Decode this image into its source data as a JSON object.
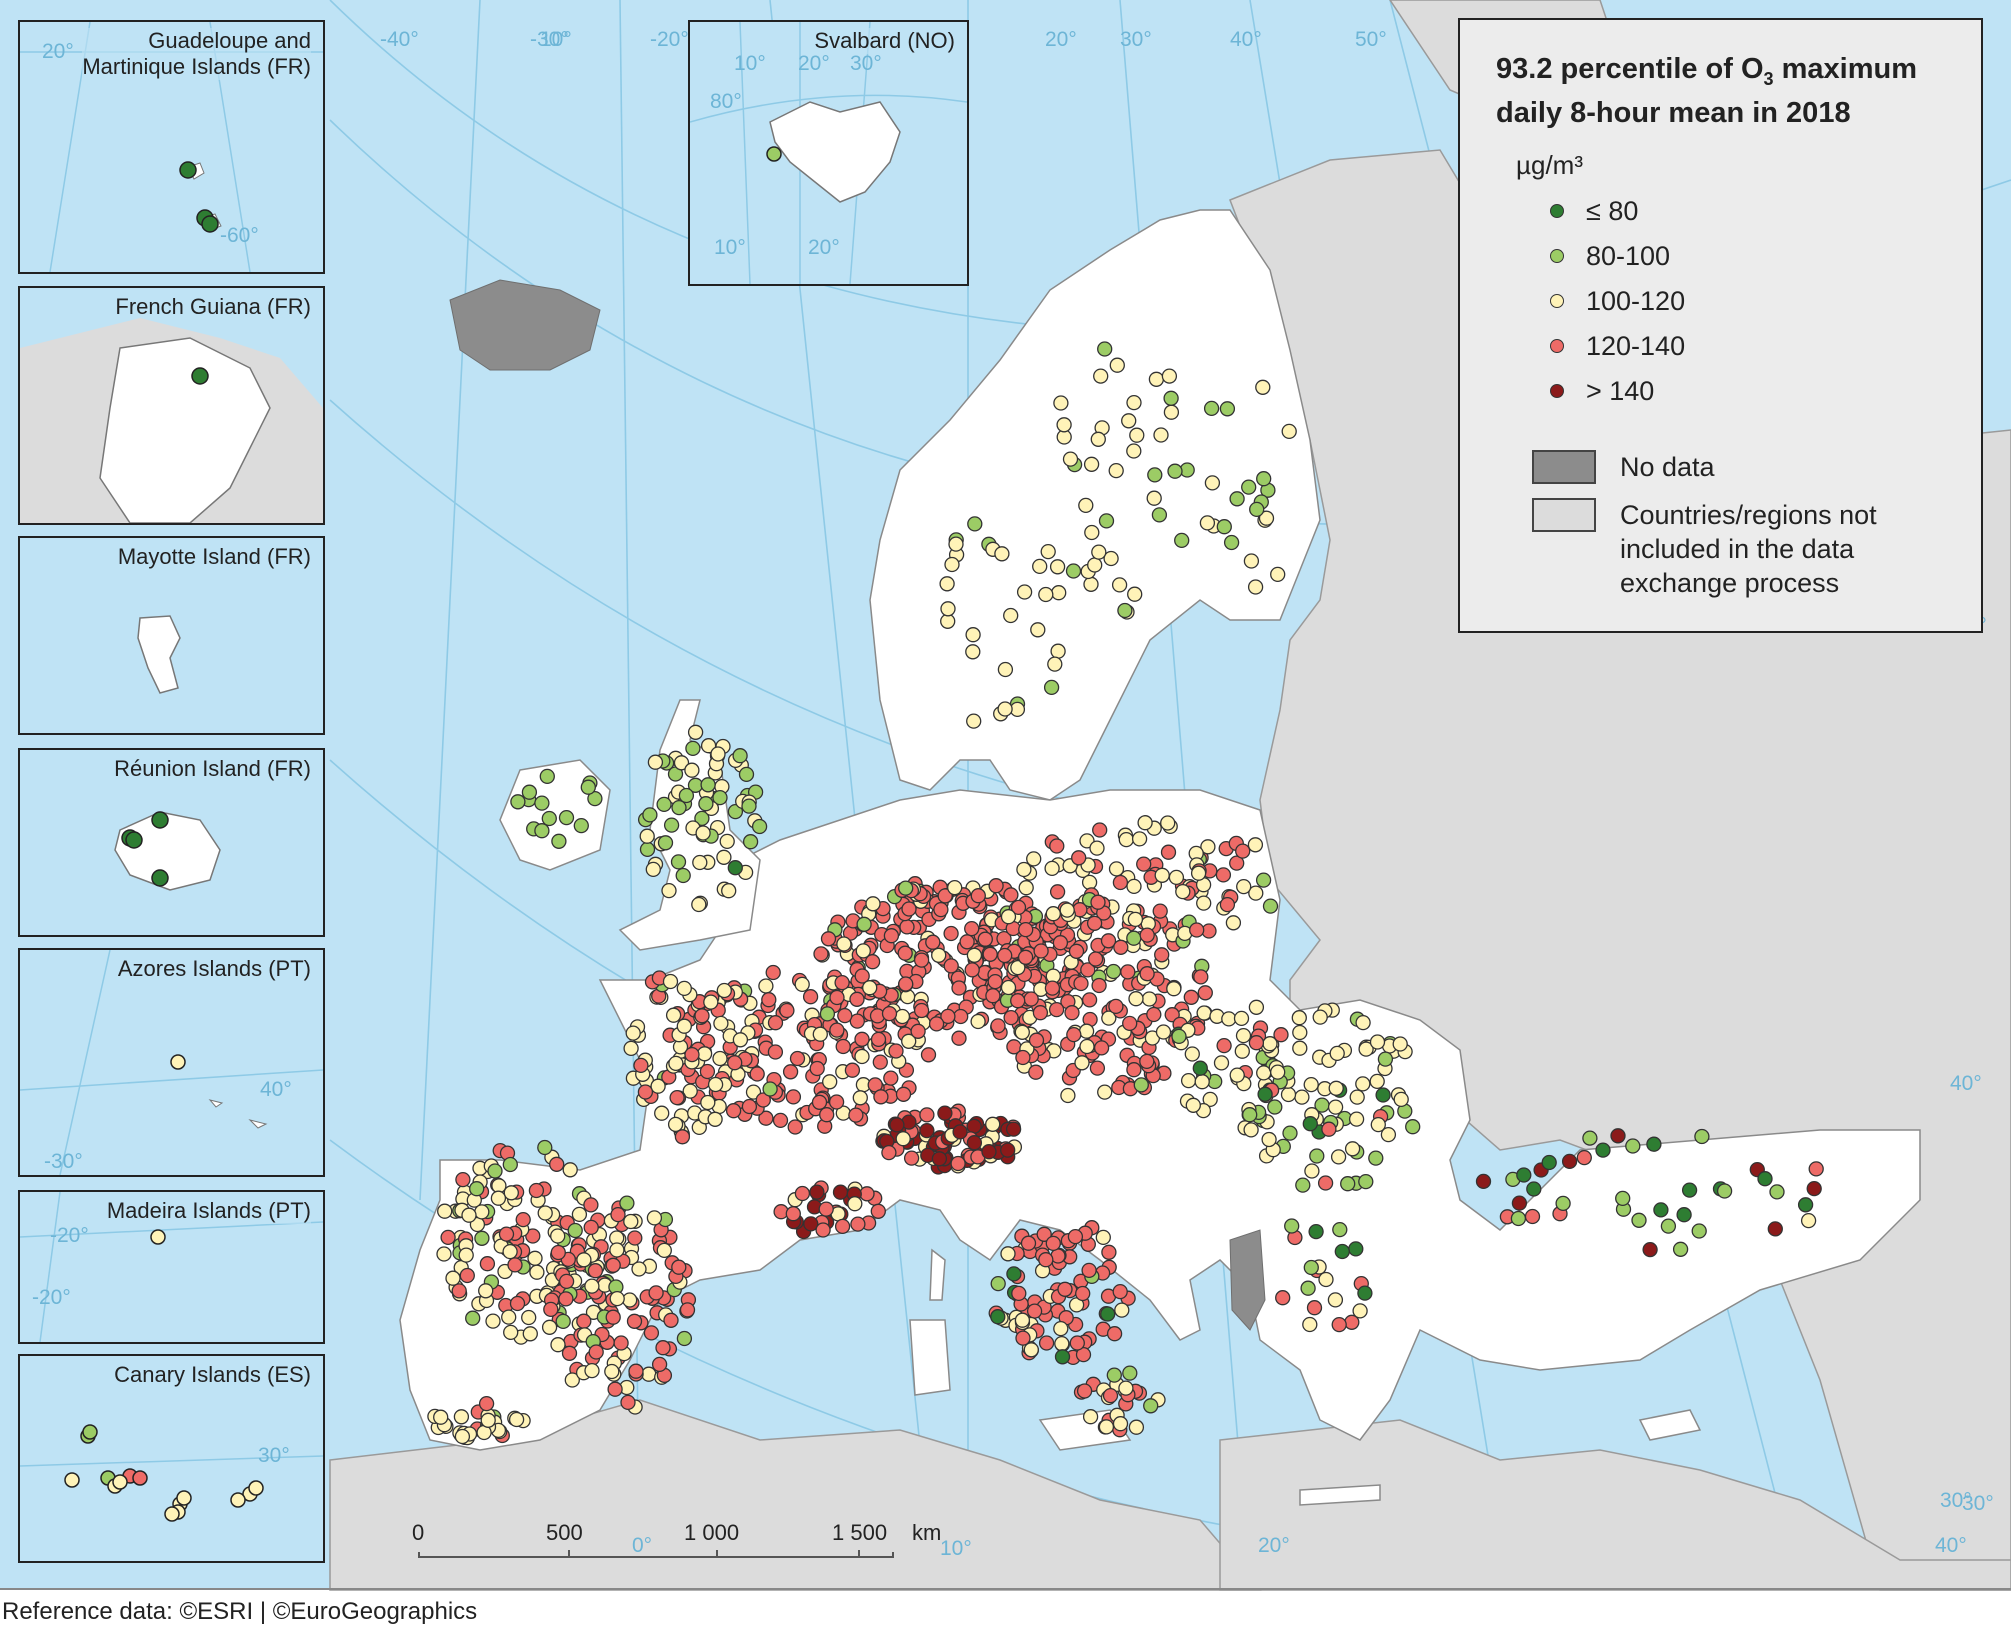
{
  "legend": {
    "title_line1_a": "93.2 percentile of O",
    "title_sub": "3",
    "title_line1_b": " maximum",
    "title_line2": "daily 8-hour mean in 2018",
    "unit": "µg/m³",
    "classes": [
      {
        "label": "≤ 80",
        "color": "#2e7d32"
      },
      {
        "label": "80-100",
        "color": "#9ccc65"
      },
      {
        "label": "100-120",
        "color": "#fff3b8"
      },
      {
        "label": "120-140",
        "color": "#ee6b67"
      },
      {
        "label": "> 140",
        "color": "#8b1a1a"
      }
    ],
    "no_data_label": "No data",
    "no_data_color": "#8c8c8c",
    "not_included_label": [
      "Countries/regions not",
      "included in the data",
      "exchange process"
    ],
    "not_included_color": "#dcdcdc"
  },
  "insets": [
    {
      "title": [
        "Guadeloupe and",
        "Martinique Islands (FR)"
      ]
    },
    {
      "title": [
        "French Guiana (FR)"
      ]
    },
    {
      "title": [
        "Mayotte Island (FR)"
      ]
    },
    {
      "title": [
        "Réunion Island (FR)"
      ]
    },
    {
      "title": [
        "Azores Islands (PT)"
      ]
    },
    {
      "title": [
        "Madeira Islands (PT)"
      ]
    },
    {
      "title": [
        "Canary Islands (ES)"
      ]
    },
    {
      "title": [
        "Svalbard (NO)"
      ]
    }
  ],
  "graticule_labels": {
    "main": [
      "-40°",
      "-30°",
      "-20°",
      "20°",
      "30°",
      "40°",
      "50°",
      "10°",
      "0°",
      "10°",
      "20°",
      "40°",
      "30°",
      "50°",
      "30°",
      "40°"
    ],
    "guadeloupe": [
      "20°",
      "-60°"
    ],
    "svalbard": [
      "10°",
      "20°",
      "30°",
      "80°",
      "10°",
      "20°"
    ],
    "azores": [
      "40°",
      "-30°"
    ],
    "madeira": [
      "-20°",
      "-20°"
    ],
    "canary": [
      "30°"
    ]
  },
  "scale": {
    "labels": [
      "0",
      "500",
      "1 000",
      "1 500"
    ],
    "unit": "km"
  },
  "footer": "Reference data: ©ESRI | ©EuroGeographics",
  "colors": {
    "sea": "#bfe3f5",
    "land_included": "#ffffff",
    "land_other": "#dcdcdc",
    "graticule": "#8ecae6",
    "border": "#7a7a7a"
  }
}
